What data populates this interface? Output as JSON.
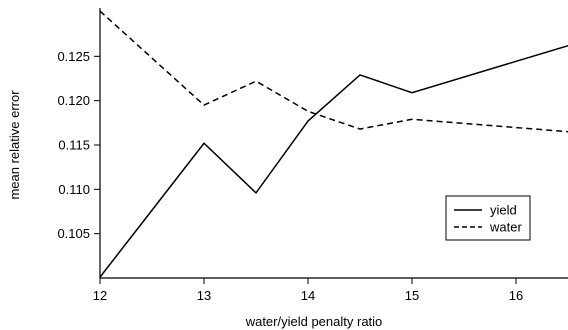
{
  "chart_data": {
    "type": "line",
    "xlabel": "water/yield penalty ratio",
    "ylabel": "mean relative error",
    "xlim": [
      12,
      16.5
    ],
    "ylim": [
      0.1,
      0.13
    ],
    "x_ticks": [
      12,
      13,
      14,
      15,
      16
    ],
    "x_tick_labels": [
      "12",
      "13",
      "14",
      "15",
      "16"
    ],
    "y_ticks": [
      0.105,
      0.11,
      0.115,
      0.12,
      0.125
    ],
    "y_tick_labels": [
      "0.105",
      "0.110",
      "0.115",
      "0.120",
      "0.125"
    ],
    "grid": false,
    "legend_position": "lower-right",
    "series": [
      {
        "name": "yield",
        "style": "solid",
        "color": "#000000",
        "x": [
          12,
          13,
          13.5,
          14,
          14.5,
          15,
          16.5
        ],
        "y": [
          0.1001,
          0.1152,
          0.1096,
          0.1177,
          0.1229,
          0.1209,
          0.1262
        ]
      },
      {
        "name": "water",
        "style": "dashed",
        "color": "#000000",
        "x": [
          12,
          13,
          13.5,
          14,
          14.5,
          15,
          16.5
        ],
        "y": [
          0.1301,
          0.1195,
          0.1222,
          0.1188,
          0.1168,
          0.1179,
          0.1165
        ]
      }
    ]
  }
}
